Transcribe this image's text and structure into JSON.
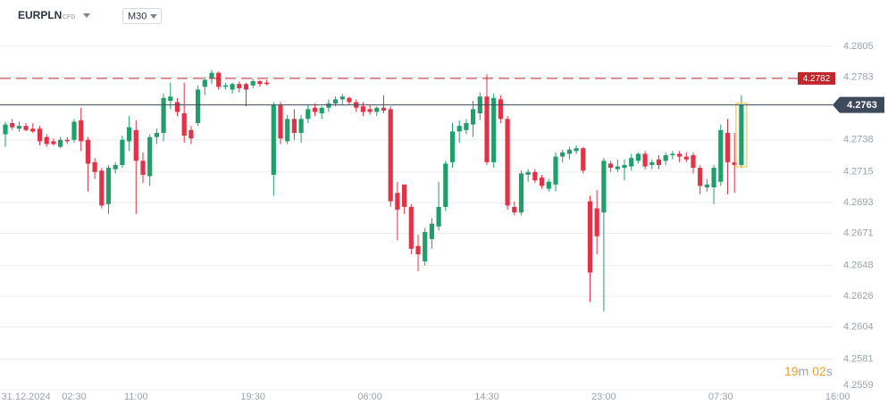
{
  "header": {
    "symbol": "EURPLN",
    "instrument_type": "CFD",
    "timeframe": "M30"
  },
  "timer": {
    "minutes": "19",
    "minutes_unit": "m",
    "seconds": "02",
    "seconds_unit": "s"
  },
  "chart_data": {
    "type": "candlestick",
    "categories": [
      null,
      null,
      null,
      "31.12.2024",
      null,
      null,
      null,
      null,
      null,
      null,
      "02:30",
      null,
      null,
      null,
      null,
      null,
      null,
      null,
      null,
      "11:00",
      null,
      null,
      null,
      null,
      null,
      null,
      null,
      null,
      null,
      null,
      null,
      null,
      null,
      null,
      null,
      null,
      "19:30",
      null,
      null,
      null,
      null,
      null,
      null,
      null,
      null,
      null,
      null,
      null,
      null,
      null,
      null,
      null,
      null,
      "06:00",
      null,
      null,
      null,
      null,
      null,
      null,
      null,
      null,
      null,
      null,
      null,
      null,
      null,
      null,
      null,
      null,
      "14:30",
      null,
      null,
      null,
      null,
      null,
      null,
      null,
      null,
      null,
      null,
      null,
      null,
      null,
      null,
      null,
      null,
      "23:00",
      null,
      null,
      null,
      null,
      null,
      null,
      null,
      null,
      null,
      null,
      null,
      null,
      null,
      null,
      null,
      null,
      "07:30",
      null,
      null,
      null,
      null,
      null,
      null,
      null,
      null,
      null,
      null,
      null,
      null,
      null,
      null,
      null,
      null,
      "16:00"
    ],
    "open": [
      4.2742,
      4.275,
      4.2746,
      4.2748,
      4.2746,
      4.2746,
      4.274,
      4.2737,
      4.2733,
      4.2738,
      4.2738,
      4.2752,
      4.2738,
      4.2722,
      4.2716,
      4.2692,
      4.2717,
      4.272,
      4.2737,
      4.2745,
      4.2723,
      4.2712,
      4.274,
      4.2743,
      4.2766,
      4.2765,
      4.2757,
      4.2745,
      4.275,
      4.2776,
      4.2782,
      4.2786,
      4.2776,
      4.2774,
      4.2778,
      4.2778,
      4.2777,
      4.278,
      4.2779,
      4.2713,
      4.2763,
      4.2737,
      4.2753,
      4.2743,
      4.2753,
      4.2761,
      4.2757,
      4.2761,
      4.2764,
      4.2767,
      4.2768,
      4.2765,
      4.2762,
      4.276,
      4.2758,
      4.2761,
      4.276,
      4.27,
      4.2706,
      4.269,
      4.2662,
      4.2651,
      4.2667,
      4.2676,
      4.269,
      4.2722,
      4.2744,
      4.2745,
      4.2749,
      4.2757,
      4.2769,
      4.2722,
      4.2767,
      4.2753,
      4.269,
      4.2686,
      4.2713,
      4.2715,
      4.2711,
      4.2703,
      4.2706,
      4.2726,
      4.2728,
      4.273,
      4.2732,
      4.2694,
      4.2689,
      4.2686,
      4.2721,
      4.2717,
      4.2718,
      4.2719,
      4.2723,
      4.2728,
      4.272,
      4.2724,
      4.2723,
      4.2727,
      4.2728,
      4.2726,
      4.2727,
      4.2718,
      4.2704,
      4.2704,
      4.2708,
      4.2743,
      4.2722,
      4.272,
      null,
      null,
      null,
      null,
      null,
      null,
      null,
      null,
      null,
      null,
      null,
      null,
      null,
      null
    ],
    "high": [
      4.2751,
      4.2753,
      4.2751,
      4.275,
      4.275,
      4.2748,
      4.2742,
      4.2739,
      4.274,
      4.274,
      4.2753,
      4.2761,
      4.274,
      4.2725,
      4.2718,
      4.272,
      4.2722,
      4.2741,
      4.2755,
      4.2752,
      4.2729,
      4.2742,
      4.2746,
      4.2771,
      4.2779,
      4.2768,
      4.2779,
      4.2748,
      4.2777,
      4.2783,
      4.2788,
      4.2787,
      4.2779,
      4.2779,
      4.278,
      4.2779,
      4.2782,
      4.2781,
      4.2781,
      4.2765,
      4.2765,
      4.2756,
      4.276,
      4.2756,
      4.2763,
      4.2764,
      4.2762,
      4.2767,
      4.2769,
      4.2771,
      4.2769,
      4.2767,
      4.2765,
      4.2763,
      4.2762,
      4.277,
      4.2762,
      4.2708,
      4.2706,
      4.2692,
      4.267,
      4.2675,
      4.2682,
      4.2708,
      4.2723,
      4.275,
      4.2752,
      4.2753,
      4.2766,
      4.2772,
      4.2785,
      4.2771,
      4.277,
      4.2755,
      4.2694,
      4.2716,
      4.2717,
      4.2717,
      4.2713,
      4.271,
      4.2729,
      4.2731,
      4.2733,
      4.2734,
      4.2733,
      4.2698,
      4.2702,
      4.2725,
      4.2723,
      4.2724,
      4.2724,
      4.2728,
      4.2729,
      4.273,
      4.2724,
      4.2727,
      4.2729,
      4.273,
      4.273,
      4.2729,
      4.2729,
      4.272,
      4.271,
      4.272,
      4.2749,
      4.2753,
      4.2743,
      4.277,
      null,
      null,
      null,
      null,
      null,
      null,
      null,
      null,
      null,
      null,
      null,
      null,
      null,
      null
    ],
    "low": [
      4.2733,
      4.2745,
      4.2744,
      4.2744,
      4.2743,
      4.2734,
      4.2733,
      4.2734,
      4.2732,
      4.2735,
      4.2736,
      4.273,
      4.2701,
      4.271,
      4.2689,
      4.2685,
      4.2714,
      4.2718,
      4.273,
      4.2685,
      4.2707,
      4.2705,
      4.2735,
      4.2737,
      4.276,
      4.2755,
      4.2736,
      4.2735,
      4.2748,
      4.277,
      4.2778,
      4.2774,
      4.2774,
      4.2771,
      4.2772,
      4.2762,
      4.2775,
      4.2776,
      4.2777,
      4.2698,
      4.2735,
      4.2735,
      4.2738,
      4.2736,
      4.275,
      4.2755,
      4.2753,
      4.2758,
      4.2762,
      4.2763,
      4.2763,
      4.2758,
      4.2755,
      4.2756,
      4.2755,
      4.2757,
      4.269,
      4.2666,
      4.2685,
      4.2656,
      4.2644,
      4.2648,
      4.266,
      4.2673,
      4.2687,
      4.2718,
      4.2736,
      4.2742,
      4.274,
      4.2752,
      4.272,
      4.2718,
      4.275,
      4.2688,
      4.2684,
      4.2684,
      4.2708,
      4.2707,
      4.2703,
      4.2701,
      4.2701,
      4.2722,
      4.2724,
      4.2728,
      4.2714,
      4.2622,
      4.2656,
      4.2615,
      4.2715,
      4.2715,
      4.2709,
      4.2716,
      4.2721,
      4.2717,
      4.2717,
      4.2717,
      4.272,
      4.2724,
      4.2722,
      4.2722,
      4.2714,
      4.2699,
      4.2701,
      4.2692,
      4.2705,
      4.2699,
      4.27,
      4.2718,
      null,
      null,
      null,
      null,
      null,
      null,
      null,
      null,
      null,
      null,
      null,
      null,
      null,
      null
    ],
    "close": [
      4.2749,
      4.2747,
      4.2748,
      4.2745,
      4.2744,
      4.2737,
      4.2735,
      4.2735,
      4.2738,
      4.2737,
      4.2751,
      4.2737,
      4.2721,
      4.2715,
      4.2691,
      4.2718,
      4.272,
      4.2738,
      4.2747,
      4.2723,
      4.2713,
      4.274,
      4.2743,
      4.2768,
      4.2769,
      4.2758,
      4.2741,
      4.2739,
      4.2774,
      4.2781,
      4.2786,
      4.2776,
      4.2777,
      4.2778,
      4.2775,
      4.2774,
      4.278,
      4.2778,
      4.2778,
      4.2763,
      4.2739,
      4.2753,
      4.2743,
      4.2753,
      4.276,
      4.2758,
      4.2761,
      4.2764,
      4.2767,
      4.2769,
      4.2765,
      4.2761,
      4.2758,
      4.2758,
      4.2761,
      4.2759,
      4.2694,
      4.2688,
      4.269,
      4.266,
      4.2656,
      4.2672,
      4.2678,
      4.269,
      4.2721,
      4.2744,
      4.2748,
      4.275,
      4.276,
      4.2769,
      4.2722,
      4.2768,
      4.2753,
      4.2691,
      4.2686,
      4.2714,
      4.2715,
      4.2709,
      4.2705,
      4.2708,
      4.2726,
      4.2729,
      4.2731,
      4.2732,
      4.2716,
      4.2643,
      4.2669,
      4.2723,
      4.2718,
      4.2719,
      4.272,
      4.2725,
      4.2728,
      4.2719,
      4.2722,
      4.272,
      4.2727,
      4.2728,
      4.2726,
      4.2724,
      4.2718,
      4.2705,
      4.2706,
      4.2718,
      4.2745,
      4.2722,
      4.272,
      4.2763,
      null,
      null,
      null,
      null,
      null,
      null,
      null,
      null,
      null,
      null,
      null,
      null,
      null,
      null
    ],
    "up_color": "#1f9f6a",
    "down_color": "#e03347",
    "ylim": [
      4.2559,
      4.2819
    ],
    "yticks": [
      4.2805,
      4.2783,
      4.2738,
      4.2715,
      4.2693,
      4.2671,
      4.2648,
      4.2626,
      4.2604,
      4.2581,
      4.2559
    ],
    "grid": true,
    "price_level": 4.2782,
    "price_level_color": "#c0272d",
    "current_price": 4.2763,
    "current_price_color": "#3c4a5b"
  }
}
